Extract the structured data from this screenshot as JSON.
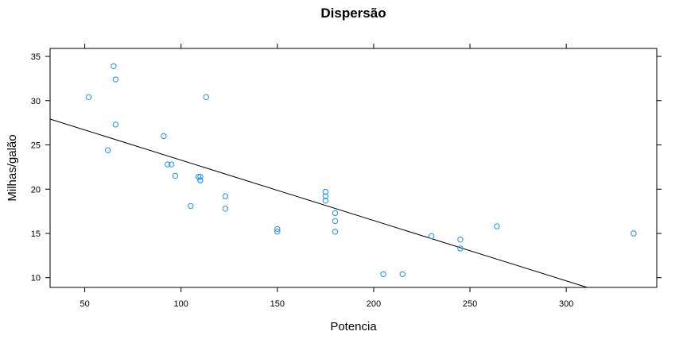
{
  "chart_data": {
    "type": "scatter",
    "title": "Dispersão",
    "xlabel": "Potencia",
    "ylabel": "Milhas/galão",
    "xlim": [
      32,
      347
    ],
    "ylim": [
      8.9,
      35.9
    ],
    "xticks": [
      50,
      100,
      150,
      200,
      250,
      300
    ],
    "yticks": [
      10,
      15,
      20,
      25,
      30,
      35
    ],
    "grid": false,
    "legend": "none",
    "point_color": "#1e90ff",
    "line_color": "#000000",
    "points": [
      {
        "x": 110,
        "y": 21.0
      },
      {
        "x": 110,
        "y": 21.0
      },
      {
        "x": 93,
        "y": 22.8
      },
      {
        "x": 110,
        "y": 21.4
      },
      {
        "x": 175,
        "y": 18.7
      },
      {
        "x": 105,
        "y": 18.1
      },
      {
        "x": 245,
        "y": 14.3
      },
      {
        "x": 62,
        "y": 24.4
      },
      {
        "x": 95,
        "y": 22.8
      },
      {
        "x": 123,
        "y": 19.2
      },
      {
        "x": 123,
        "y": 17.8
      },
      {
        "x": 180,
        "y": 16.4
      },
      {
        "x": 180,
        "y": 17.3
      },
      {
        "x": 180,
        "y": 15.2
      },
      {
        "x": 205,
        "y": 10.4
      },
      {
        "x": 215,
        "y": 10.4
      },
      {
        "x": 230,
        "y": 14.7
      },
      {
        "x": 66,
        "y": 32.4
      },
      {
        "x": 52,
        "y": 30.4
      },
      {
        "x": 65,
        "y": 33.9
      },
      {
        "x": 97,
        "y": 21.5
      },
      {
        "x": 150,
        "y": 15.5
      },
      {
        "x": 150,
        "y": 15.2
      },
      {
        "x": 245,
        "y": 13.3
      },
      {
        "x": 175,
        "y": 19.2
      },
      {
        "x": 66,
        "y": 27.3
      },
      {
        "x": 91,
        "y": 26.0
      },
      {
        "x": 113,
        "y": 30.4
      },
      {
        "x": 264,
        "y": 15.8
      },
      {
        "x": 175,
        "y": 19.7
      },
      {
        "x": 335,
        "y": 15.0
      },
      {
        "x": 109,
        "y": 21.4
      }
    ],
    "regression_line": {
      "intercept": 30.1,
      "slope": -0.0682
    }
  }
}
